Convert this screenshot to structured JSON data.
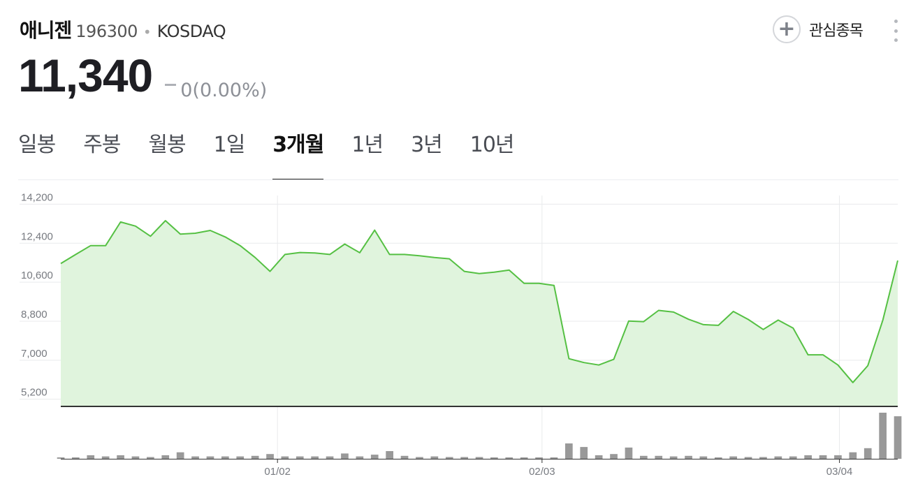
{
  "stock": {
    "name": "애니젠",
    "code": "196300",
    "separator": "•",
    "market": "KOSDAQ"
  },
  "actions": {
    "watch_icon": "plus-icon",
    "watch_label": "관심종목",
    "more_icon": "more-vertical-icon"
  },
  "quote": {
    "price": "11,340",
    "change": "0(0.00%)",
    "change_icon": "unchanged-dash-icon"
  },
  "tabs": [
    {
      "label": "일봉",
      "active": false
    },
    {
      "label": "주봉",
      "active": false
    },
    {
      "label": "월봉",
      "active": false
    },
    {
      "label": "1일",
      "active": false
    },
    {
      "label": "3개월",
      "active": true
    },
    {
      "label": "1년",
      "active": false
    },
    {
      "label": "3년",
      "active": false
    },
    {
      "label": "10년",
      "active": false
    }
  ],
  "colors": {
    "line": "#55c043",
    "area": "#e0f4dd",
    "volume_bar": "#999999",
    "grid": "#e9eaec",
    "axis": "#333333"
  },
  "chart_data": {
    "type": "area",
    "ylim": [
      4900,
      14600
    ],
    "y_ticks": [
      "14,200",
      "12,400",
      "10,600",
      "8,800",
      "7,000",
      "5,200"
    ],
    "y_tick_values": [
      14200,
      12400,
      10600,
      8800,
      7000,
      5200
    ],
    "x_tick_labels": [
      {
        "label": "01/02",
        "index": 14.5
      },
      {
        "label": "02/03",
        "index": 32.2
      },
      {
        "label": "03/04",
        "index": 52.1
      }
    ],
    "grid": true,
    "series": [
      {
        "values": [
          11460,
          11880,
          12290,
          12290,
          13380,
          13190,
          12720,
          13440,
          12820,
          12860,
          12990,
          12690,
          12290,
          11740,
          11100,
          11880,
          11970,
          11950,
          11880,
          12360,
          11960,
          13000,
          11880,
          11880,
          11820,
          11740,
          11680,
          11100,
          11000,
          11060,
          11160,
          10550,
          10550,
          10450,
          7070,
          6890,
          6780,
          7040,
          8810,
          8780,
          9300,
          9220,
          8890,
          8640,
          8610,
          9250,
          8880,
          8420,
          8850,
          8480,
          7250,
          7250,
          6780,
          5970,
          6750,
          8840,
          11600
        ]
      }
    ],
    "volume": [
      2,
      2,
      6,
      4,
      6,
      4,
      3,
      6,
      11,
      4,
      4,
      4,
      4,
      5,
      8,
      4,
      4,
      4,
      4,
      9,
      4,
      7,
      13,
      5,
      3,
      4,
      3,
      3,
      3,
      2,
      2,
      2,
      2,
      2,
      26,
      20,
      6,
      8,
      19,
      5,
      5,
      4,
      5,
      4,
      2,
      4,
      3,
      3,
      4,
      4,
      6,
      6,
      6,
      11,
      18,
      78,
      72
    ]
  }
}
